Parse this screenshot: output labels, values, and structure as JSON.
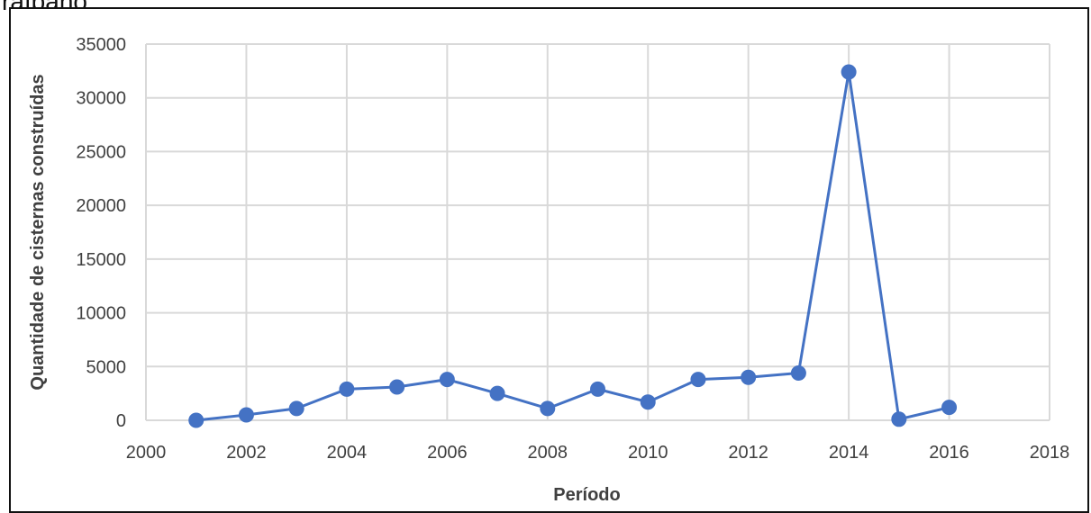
{
  "page": {
    "cut_text": "raíbano"
  },
  "chart_data": {
    "type": "line",
    "title": "",
    "xlabel": "Período",
    "ylabel": "Quantidade de cisternas construídas",
    "xlim": [
      2000,
      2018
    ],
    "ylim": [
      0,
      35000
    ],
    "x_ticks": [
      2000,
      2002,
      2004,
      2006,
      2008,
      2010,
      2012,
      2014,
      2016,
      2018
    ],
    "y_ticks": [
      0,
      5000,
      10000,
      15000,
      20000,
      25000,
      30000,
      35000
    ],
    "grid": true,
    "legend": "none",
    "series": [
      {
        "color": "#4472C4",
        "marker": "circle",
        "x": [
          2001,
          2002,
          2003,
          2004,
          2005,
          2006,
          2007,
          2008,
          2009,
          2010,
          2011,
          2012,
          2013,
          2014,
          2015,
          2016
        ],
        "values": [
          0,
          500,
          1100,
          2900,
          3100,
          3800,
          2500,
          1100,
          2900,
          1700,
          3800,
          4000,
          4400,
          32400,
          100,
          1200
        ]
      }
    ]
  }
}
